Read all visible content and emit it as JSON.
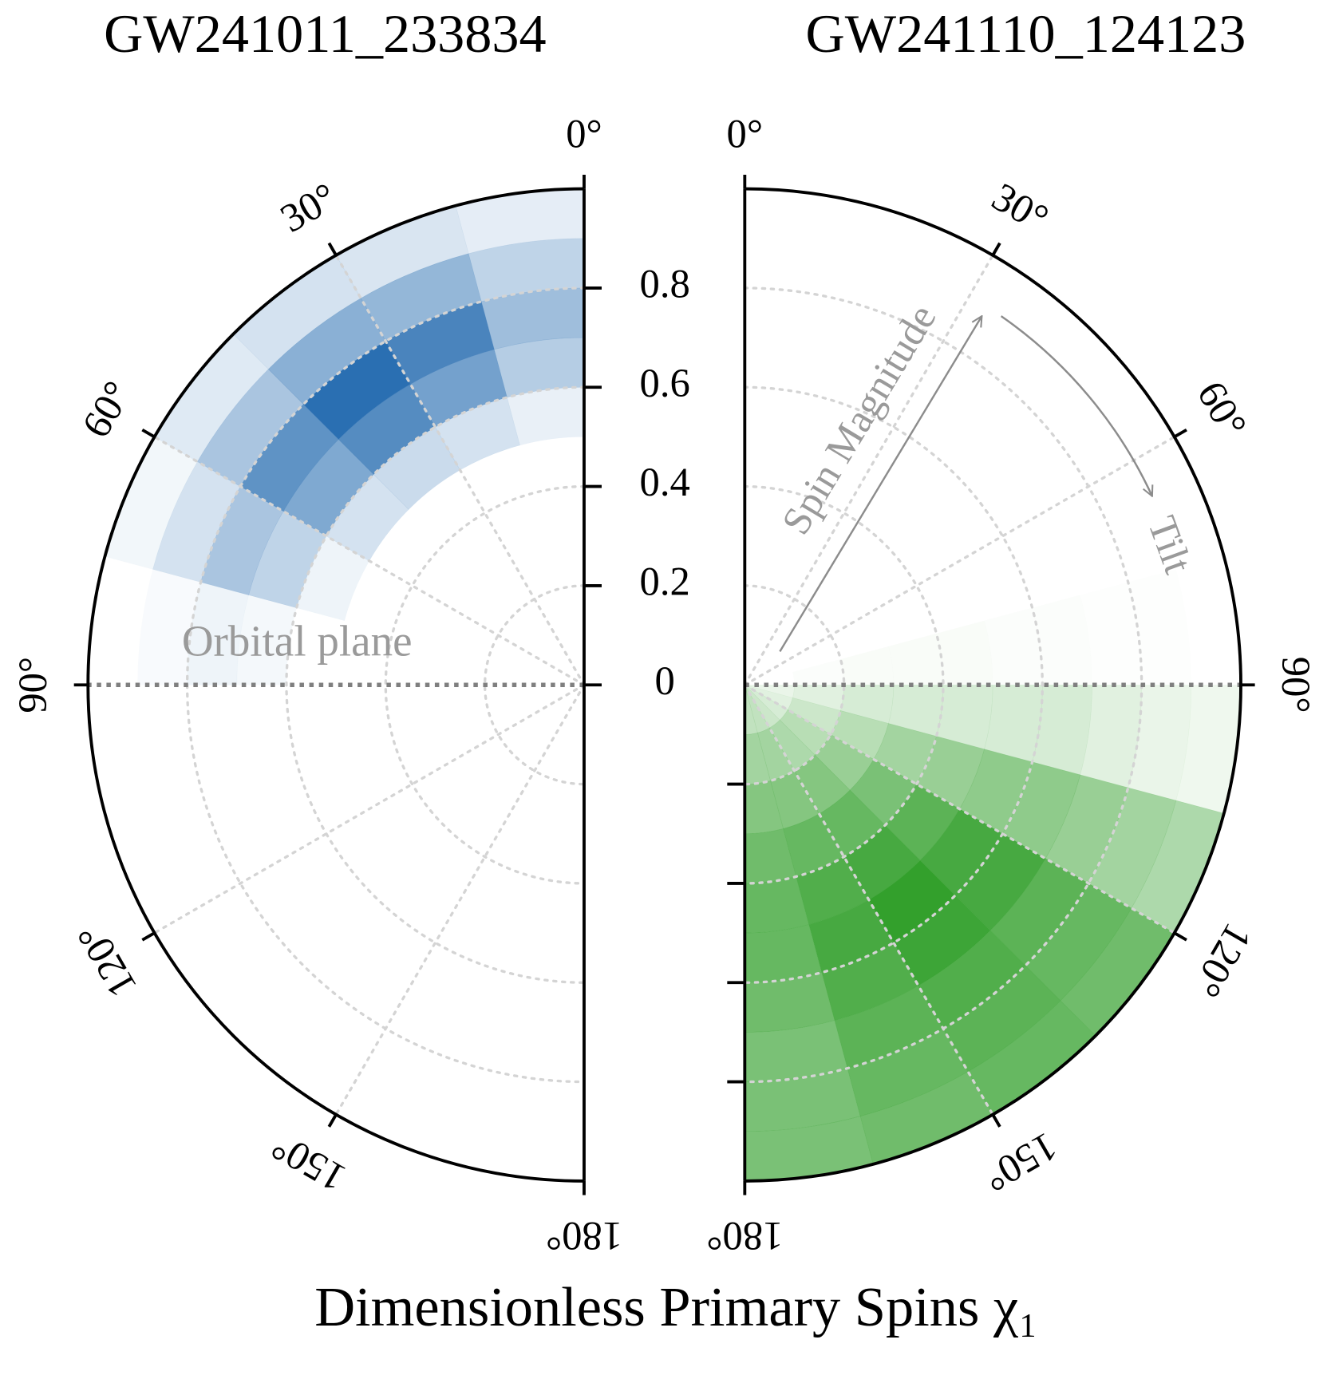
{
  "supxlabel": "Dimensionless Primary Spins χ₁",
  "chart_data": [
    {
      "type": "polar_heatmap",
      "title": "GW241011_233834",
      "color": "#2a6fb2",
      "theta_direction": "counterclockwise",
      "rlim": [
        0,
        1
      ],
      "thetalim": [
        0,
        180
      ],
      "rticks": [
        0,
        0.2,
        0.4,
        0.6,
        0.8
      ],
      "thetaticks": [
        {
          "value": 0,
          "label": "0°"
        },
        {
          "value": 30,
          "label": "30°"
        },
        {
          "value": 60,
          "label": "60°"
        },
        {
          "value": 90,
          "label": "90°"
        },
        {
          "value": 120,
          "label": "120°"
        },
        {
          "value": 150,
          "label": "150°"
        },
        {
          "value": 180,
          "label": "180°"
        }
      ],
      "grid": true,
      "orbital_plane_theta": 90,
      "r_bins": [
        0,
        0.1,
        0.2,
        0.3,
        0.4,
        0.5,
        0.6,
        0.7,
        0.8,
        0.9,
        1.0
      ],
      "theta_bins": [
        0,
        15,
        30,
        45,
        60,
        75,
        90,
        105,
        120,
        135,
        150,
        165,
        180
      ],
      "density": [
        [
          0,
          0,
          0,
          0,
          0,
          0,
          0,
          0,
          0,
          0,
          0,
          0
        ],
        [
          0,
          0,
          0,
          0,
          0,
          0,
          0,
          0,
          0,
          0,
          0,
          0
        ],
        [
          0,
          0,
          0,
          0,
          0,
          0,
          0,
          0,
          0,
          0,
          0,
          0
        ],
        [
          0,
          0,
          0,
          0,
          0,
          0,
          0,
          0,
          0,
          0,
          0,
          0
        ],
        [
          0,
          0,
          0,
          0,
          0,
          0,
          0,
          0,
          0,
          0,
          0,
          0
        ],
        [
          0.1,
          0.2,
          0.25,
          0.2,
          0.08,
          0,
          0,
          0,
          0,
          0,
          0,
          0
        ],
        [
          0.35,
          0.65,
          0.8,
          0.6,
          0.3,
          0.05,
          0,
          0,
          0,
          0,
          0,
          0
        ],
        [
          0.45,
          0.85,
          1.0,
          0.75,
          0.4,
          0.08,
          0,
          0,
          0,
          0,
          0,
          0
        ],
        [
          0.3,
          0.5,
          0.55,
          0.4,
          0.2,
          0.03,
          0,
          0,
          0,
          0,
          0,
          0
        ],
        [
          0.12,
          0.18,
          0.2,
          0.15,
          0.06,
          0,
          0,
          0,
          0,
          0,
          0,
          0
        ]
      ],
      "annotations": [
        "Orbital plane"
      ]
    },
    {
      "type": "polar_heatmap",
      "title": "GW241110_124123",
      "color": "#33a02c",
      "theta_direction": "clockwise",
      "rlim": [
        0,
        1
      ],
      "thetalim": [
        0,
        180
      ],
      "rticks": [
        0.2,
        0.4,
        0.6,
        0.8
      ],
      "thetaticks": [
        {
          "value": 0,
          "label": "0°"
        },
        {
          "value": 30,
          "label": "30°"
        },
        {
          "value": 60,
          "label": "60°"
        },
        {
          "value": 90,
          "label": "90°"
        },
        {
          "value": 120,
          "label": "120°"
        },
        {
          "value": 150,
          "label": "150°"
        },
        {
          "value": 180,
          "label": "180°"
        }
      ],
      "grid": true,
      "orbital_plane_theta": 90,
      "r_bins": [
        0,
        0.1,
        0.2,
        0.3,
        0.4,
        0.5,
        0.6,
        0.7,
        0.8,
        0.9,
        1.0
      ],
      "theta_bins": [
        0,
        15,
        30,
        45,
        60,
        75,
        90,
        105,
        120,
        135,
        150,
        165,
        180
      ],
      "density": [
        [
          0,
          0,
          0,
          0,
          0,
          0,
          0.1,
          0.15,
          0.2,
          0.25,
          0.3,
          0.3
        ],
        [
          0,
          0,
          0,
          0,
          0,
          0.02,
          0.15,
          0.25,
          0.35,
          0.4,
          0.45,
          0.45
        ],
        [
          0,
          0,
          0,
          0,
          0,
          0.03,
          0.2,
          0.35,
          0.5,
          0.6,
          0.6,
          0.6
        ],
        [
          0,
          0,
          0,
          0,
          0,
          0.03,
          0.2,
          0.45,
          0.65,
          0.75,
          0.75,
          0.7
        ],
        [
          0,
          0,
          0,
          0,
          0,
          0.03,
          0.2,
          0.5,
          0.8,
          0.9,
          0.85,
          0.75
        ],
        [
          0,
          0,
          0,
          0,
          0,
          0.02,
          0.2,
          0.55,
          0.9,
          1.0,
          0.9,
          0.75
        ],
        [
          0,
          0,
          0,
          0,
          0,
          0.02,
          0.2,
          0.55,
          0.9,
          0.95,
          0.85,
          0.7
        ],
        [
          0,
          0,
          0,
          0,
          0,
          0.01,
          0.15,
          0.5,
          0.8,
          0.85,
          0.8,
          0.65
        ],
        [
          0,
          0,
          0,
          0,
          0,
          0.01,
          0.1,
          0.45,
          0.75,
          0.8,
          0.75,
          0.65
        ],
        [
          0,
          0,
          0,
          0,
          0,
          0,
          0.08,
          0.4,
          0.7,
          0.75,
          0.7,
          0.65
        ]
      ],
      "annotations": [
        "Spin Magnitude",
        "Tilt"
      ]
    }
  ]
}
